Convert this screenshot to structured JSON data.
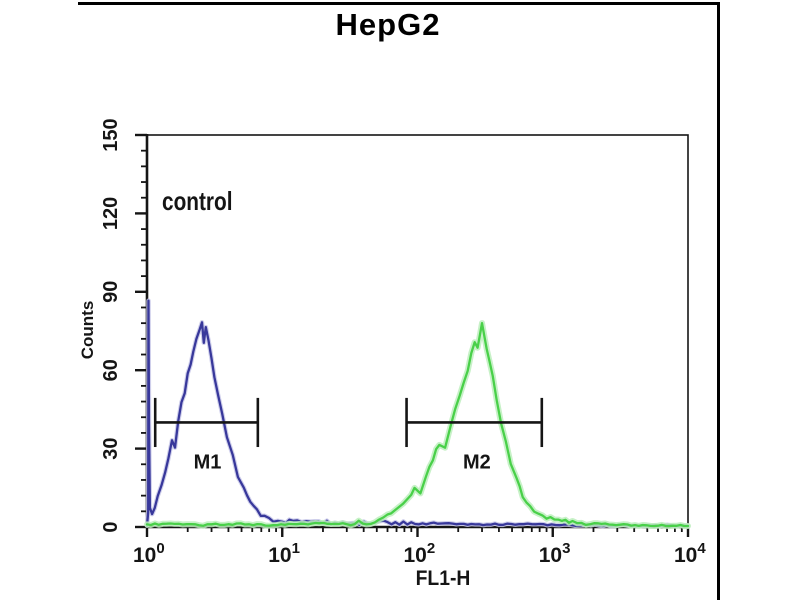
{
  "figure": {
    "title": "HepG2",
    "annotation": "control"
  },
  "chart_data": {
    "type": "line",
    "subtype": "flow-cytometry-histogram",
    "title": "HepG2",
    "xlabel": "FL1-H",
    "ylabel": "Counts",
    "x_scale": "log",
    "x_decades": [
      0,
      4
    ],
    "ylim": [
      0,
      150
    ],
    "y_major_step": 30,
    "y_minor_step": 6,
    "y_tick_values": [
      0,
      30,
      60,
      90,
      120,
      150
    ],
    "x_tick_exponents": [
      0,
      1,
      2,
      3,
      4
    ],
    "grid": "off",
    "legend": "none",
    "axis_color": "#151515",
    "series": [
      {
        "name": "control-blue-curve",
        "color": "#38389b",
        "halo": "#c7c7e8",
        "halo_width": 4.5,
        "seed": 3,
        "peak_x": 2.6,
        "peak_counts": 79,
        "points": [
          [
            1,
            0.5
          ],
          [
            1.02,
            5
          ],
          [
            1.025,
            87
          ],
          [
            1.035,
            40
          ],
          [
            1.05,
            8
          ],
          [
            1.09,
            5
          ],
          [
            1.14,
            8
          ],
          [
            1.2,
            12
          ],
          [
            1.28,
            16
          ],
          [
            1.36,
            21
          ],
          [
            1.44,
            27
          ],
          [
            1.53,
            33
          ],
          [
            1.61,
            31
          ],
          [
            1.7,
            40
          ],
          [
            1.8,
            47
          ],
          [
            1.9,
            52
          ],
          [
            2.0,
            58
          ],
          [
            2.1,
            63
          ],
          [
            2.2,
            68
          ],
          [
            2.32,
            72
          ],
          [
            2.45,
            76
          ],
          [
            2.55,
            79
          ],
          [
            2.63,
            71
          ],
          [
            2.72,
            77
          ],
          [
            2.85,
            72
          ],
          [
            3.0,
            65
          ],
          [
            3.15,
            58
          ],
          [
            3.35,
            50
          ],
          [
            3.6,
            43
          ],
          [
            3.9,
            35
          ],
          [
            4.3,
            27
          ],
          [
            4.7,
            20
          ],
          [
            5.2,
            15
          ],
          [
            5.8,
            10
          ],
          [
            6.5,
            6
          ],
          [
            7.4,
            4
          ],
          [
            8.6,
            2.5
          ],
          [
            10,
            2
          ],
          [
            12,
            3
          ],
          [
            15,
            2
          ],
          [
            20,
            1.5
          ],
          [
            28,
            2
          ],
          [
            40,
            1.5
          ],
          [
            60,
            2
          ],
          [
            90,
            1
          ],
          [
            150,
            1.5
          ],
          [
            250,
            1
          ],
          [
            400,
            1
          ],
          [
            700,
            1
          ],
          [
            1200,
            0.8
          ],
          [
            2500,
            0.6
          ],
          [
            5000,
            0.5
          ],
          [
            10000,
            0.5
          ]
        ]
      },
      {
        "name": "sample-green-curve",
        "color": "#49d049",
        "halo": "#bdeebd",
        "halo_width": 6,
        "seed": 11,
        "peak_x": 300,
        "peak_counts": 78,
        "points": [
          [
            1,
            1
          ],
          [
            1.6,
            1.2
          ],
          [
            2.6,
            0.8
          ],
          [
            4,
            1.2
          ],
          [
            7,
            0.8
          ],
          [
            12,
            1
          ],
          [
            20,
            1.5
          ],
          [
            30,
            1.2
          ],
          [
            45,
            2
          ],
          [
            60,
            4
          ],
          [
            72,
            7
          ],
          [
            85,
            11
          ],
          [
            95,
            15
          ],
          [
            105,
            13
          ],
          [
            115,
            19
          ],
          [
            130,
            26
          ],
          [
            145,
            32
          ],
          [
            160,
            30
          ],
          [
            175,
            38
          ],
          [
            190,
            45
          ],
          [
            205,
            50
          ],
          [
            220,
            56
          ],
          [
            235,
            60
          ],
          [
            250,
            66
          ],
          [
            265,
            70
          ],
          [
            278,
            68
          ],
          [
            290,
            74
          ],
          [
            300,
            78
          ],
          [
            312,
            73
          ],
          [
            325,
            68
          ],
          [
            340,
            64
          ],
          [
            360,
            57
          ],
          [
            385,
            48
          ],
          [
            415,
            40
          ],
          [
            450,
            32
          ],
          [
            490,
            25
          ],
          [
            540,
            18
          ],
          [
            600,
            12
          ],
          [
            680,
            8
          ],
          [
            780,
            5
          ],
          [
            900,
            3.5
          ],
          [
            1100,
            2.5
          ],
          [
            1400,
            2
          ],
          [
            1900,
            1.5
          ],
          [
            2600,
            1
          ],
          [
            3800,
            0.7
          ],
          [
            6000,
            0.5
          ],
          [
            10000,
            0.5
          ]
        ]
      }
    ],
    "markers": [
      {
        "label": "M1",
        "from": 1.15,
        "to": 6.6,
        "y_counts": 40,
        "endbar_half_counts": 9.4,
        "label_x": 2.8,
        "label_y_counts": 25
      },
      {
        "label": "M2",
        "from": 83,
        "to": 830,
        "y_counts": 40,
        "endbar_half_counts": 9.4,
        "label_x": 275,
        "label_y_counts": 25
      }
    ]
  }
}
